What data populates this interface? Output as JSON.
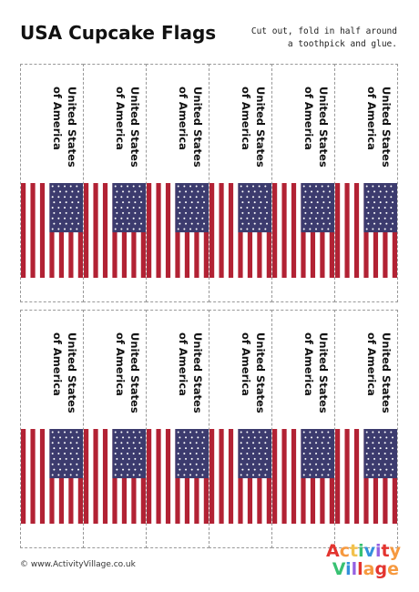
{
  "header": {
    "title": "USA Cupcake Flags",
    "instructions": [
      "Cut out, fold in half around",
      "a toothpick and glue."
    ]
  },
  "flag": {
    "label_line1": "United States",
    "label_line2": "of America",
    "columns": 6,
    "rows": 2,
    "stripes": 13,
    "colors": {
      "red": "#b22234",
      "white": "#ffffff",
      "blue": "#3c3b6e"
    }
  },
  "footer": {
    "copyright_url": "© www.ActivityVillage.co.uk",
    "logo_line1": "Activity",
    "logo_line2": "Village",
    "logo_letter_colors": [
      "#e3342f",
      "#f6993f",
      "#f2c14e",
      "#38c172",
      "#3490dc",
      "#9561e2",
      "#e3342f",
      "#f6993f"
    ]
  }
}
